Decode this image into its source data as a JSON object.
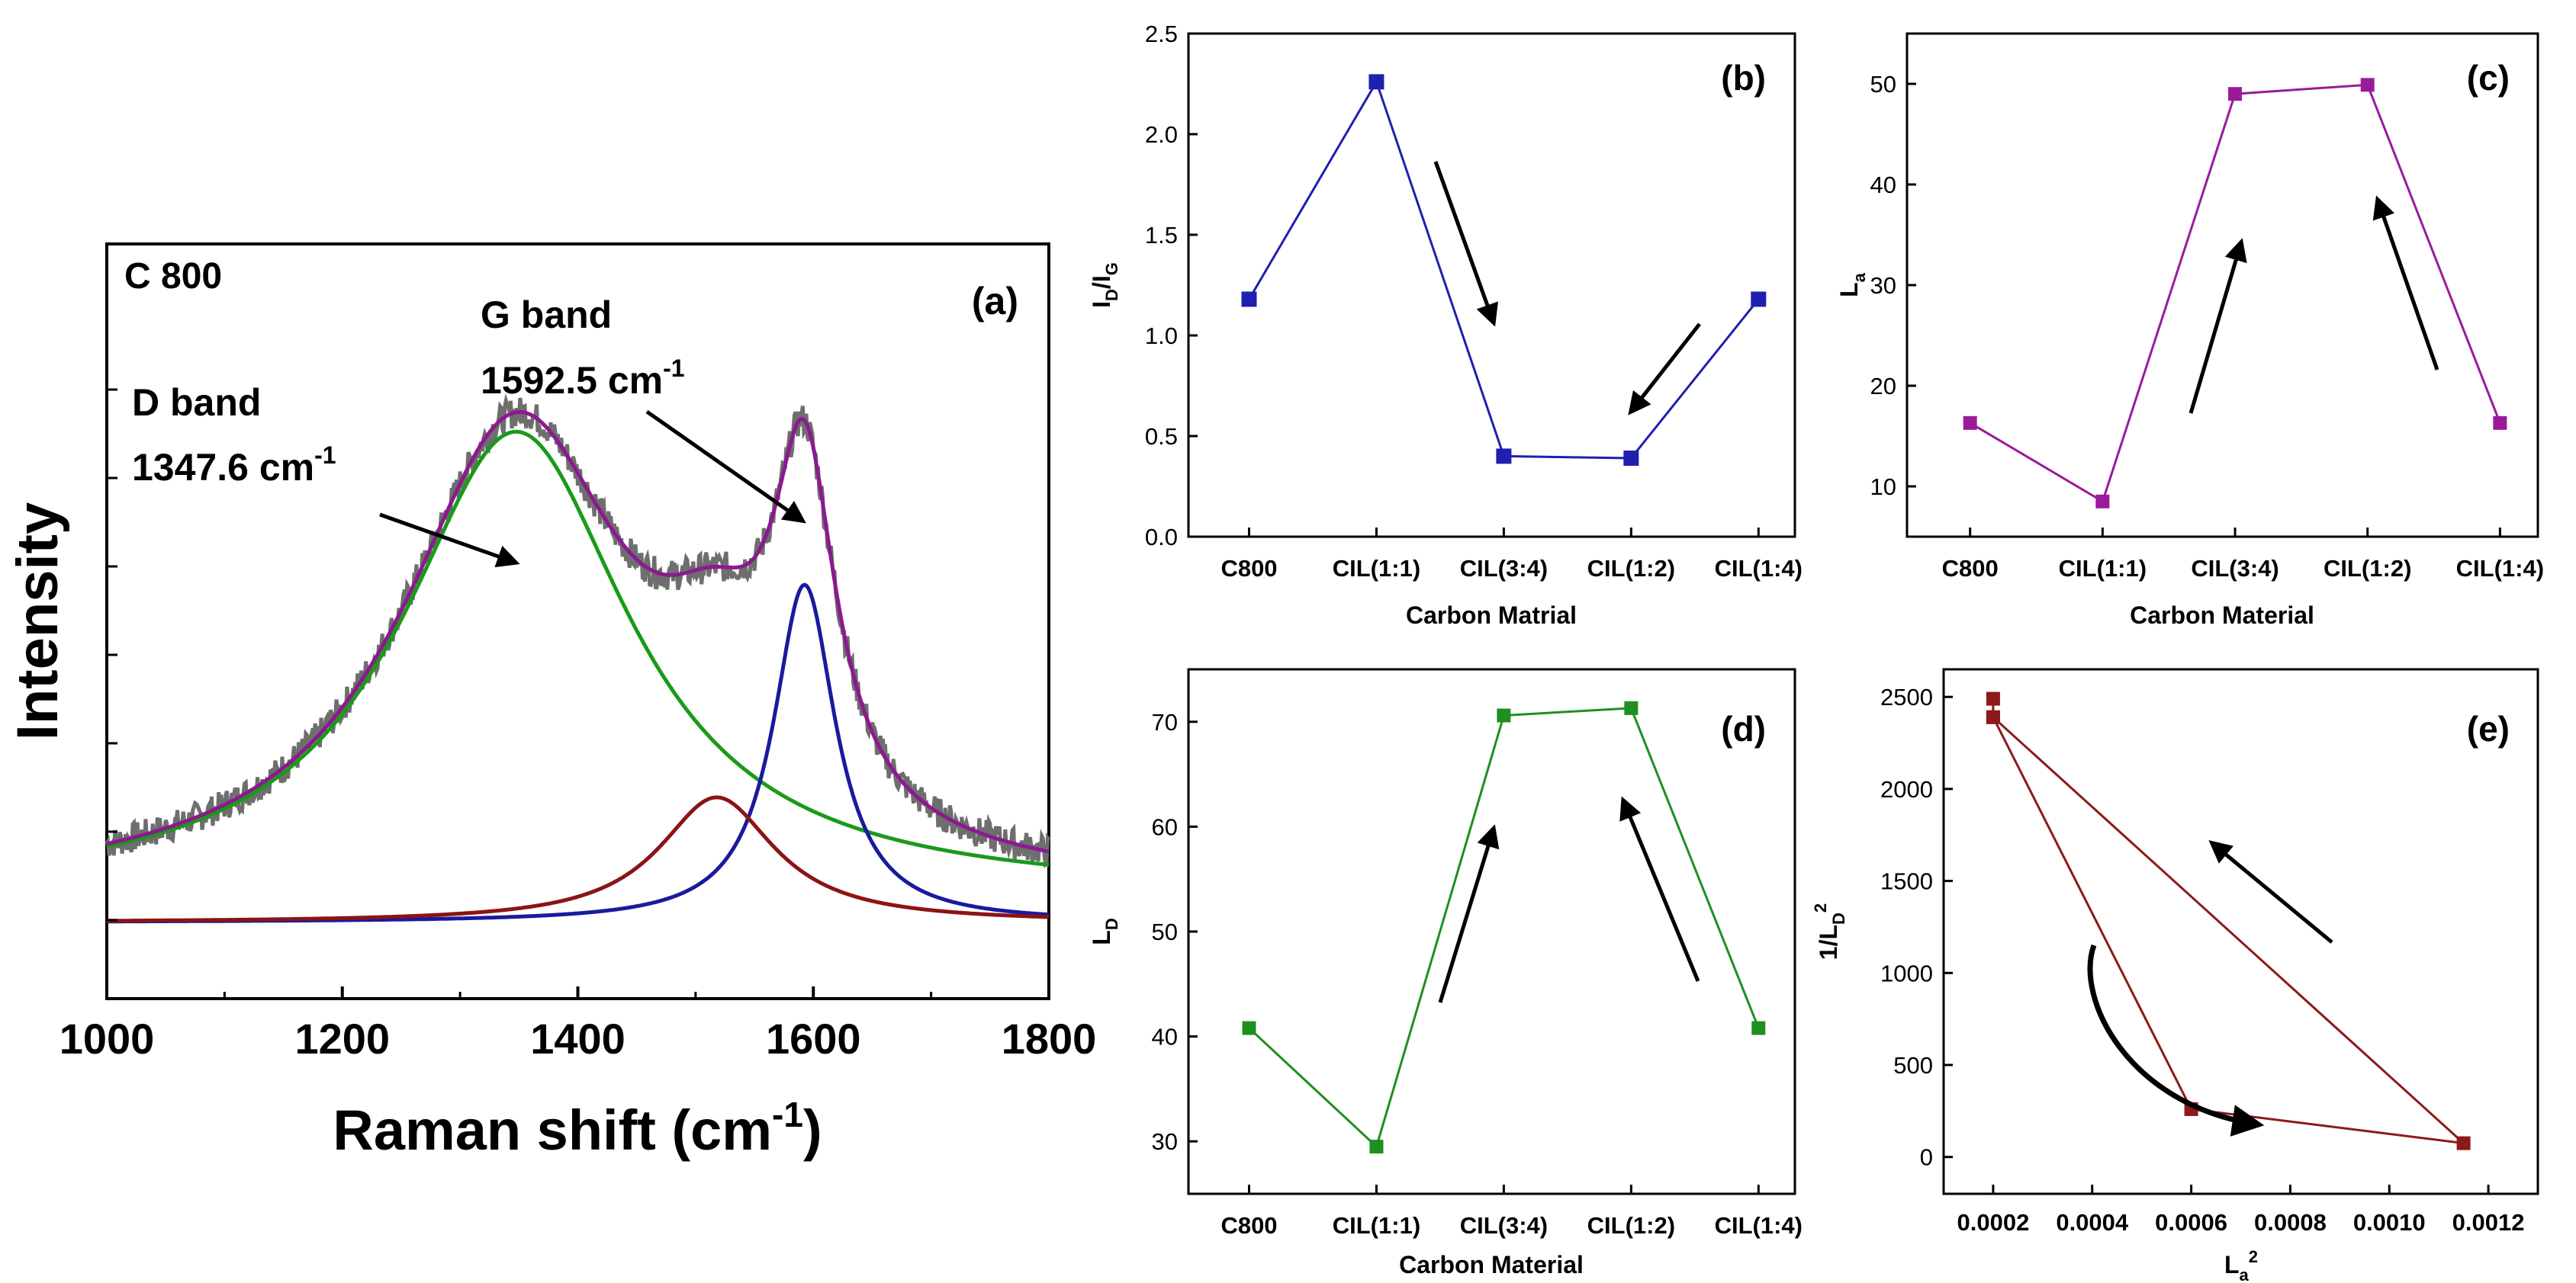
{
  "colors": {
    "raw": "#6e6e6e",
    "fit": "#8b1a8f",
    "d_band": "#1a9a1a",
    "g_band": "#1a1a9e",
    "d_prime": "#8b1414",
    "blue": "#1f1fb0",
    "purple": "#9b1a9b",
    "green": "#1f8f1f",
    "darkred": "#8b1a1a"
  },
  "chart_data": [
    {
      "id": "a",
      "type": "line",
      "panel_label": "(a)",
      "sample_label": "C 800",
      "xlabel": "Raman shift (cm-1)",
      "xlabel_main": "Raman shift (cm",
      "xlabel_sup": "-1",
      "xlabel_end": ")",
      "ylabel": "Intensity",
      "xlim": [
        1000,
        1800
      ],
      "xticks": [
        "1000",
        "1200",
        "1400",
        "1600",
        "1800"
      ],
      "ylim": [
        0,
        1.05
      ],
      "annotations": [
        {
          "title": "D band",
          "line": "1347.6 cm",
          "sup": "-1"
        },
        {
          "title": "G band",
          "line": "1592.5 cm",
          "sup": "-1"
        }
      ],
      "series": [
        {
          "name": "raw spectrum",
          "color_key": "raw"
        },
        {
          "name": "cumulative fit",
          "color_key": "fit"
        },
        {
          "name": "D band",
          "color_key": "d_band",
          "center": 1347.6,
          "width": 118,
          "height": 0.74,
          "offset": 0.045
        },
        {
          "name": "G band",
          "color_key": "g_band",
          "center": 1592.5,
          "width": 32,
          "height": 0.54,
          "offset": 0.0
        },
        {
          "name": "D'' band",
          "color_key": "d_prime",
          "center": 1518,
          "width": 60,
          "height": 0.2,
          "offset": 0.0
        }
      ]
    },
    {
      "id": "b",
      "type": "line",
      "panel_label": "(b)",
      "xlabel": "Carbon Matrial",
      "ylabel": "ID/IG",
      "ylabel_main": "I",
      "ylabel_sub1": "D",
      "ylabel_mid": "/I",
      "ylabel_sub2": "G",
      "categories": [
        "C800",
        "CIL(1:1)",
        "CIL(3:4)",
        "CIL(1:2)",
        "CIL(1:4)"
      ],
      "values": [
        1.18,
        2.26,
        0.4,
        0.39,
        1.18
      ],
      "ylim": [
        0,
        2.5
      ],
      "yticks": [
        "0.0",
        "0.5",
        "1.0",
        "1.5",
        "2.0",
        "2.5"
      ],
      "color_key": "blue"
    },
    {
      "id": "c",
      "type": "line",
      "panel_label": "(c)",
      "xlabel": "Carbon Material",
      "ylabel": "La",
      "ylabel_main": "L",
      "ylabel_sub": "a",
      "categories": [
        "C800",
        "CIL(1:1)",
        "CIL(3:4)",
        "CIL(1:2)",
        "CIL(1:4)"
      ],
      "values": [
        16.3,
        8.5,
        49.0,
        49.9,
        16.3
      ],
      "ylim": [
        5,
        55
      ],
      "yticks": [
        "10",
        "20",
        "30",
        "40",
        "50"
      ],
      "color_key": "purple"
    },
    {
      "id": "d",
      "type": "line",
      "panel_label": "(d)",
      "xlabel": "Carbon Material",
      "ylabel": "LD",
      "ylabel_main": "L",
      "ylabel_sub": "D",
      "categories": [
        "C800",
        "CIL(1:1)",
        "CIL(3:4)",
        "CIL(1:2)",
        "CIL(1:4)"
      ],
      "values": [
        40.8,
        29.5,
        70.6,
        71.3,
        40.8
      ],
      "ylim": [
        25,
        75
      ],
      "yticks": [
        "30",
        "40",
        "50",
        "60",
        "70"
      ],
      "color_key": "green"
    },
    {
      "id": "e",
      "type": "line",
      "panel_label": "(e)",
      "xlabel": "La2",
      "xlabel_main": "L",
      "xlabel_sub": "a",
      "xlabel_sup": "2",
      "ylabel": "1/LD2",
      "ylabel_main": "1/L",
      "ylabel_sub": "D",
      "ylabel_sup": "2",
      "x": [
        0.0002,
        0.0002,
        0.0006,
        0.00115,
        0.0002
      ],
      "y": [
        2490,
        2390,
        260,
        75,
        2390
      ],
      "xlim": [
        0.0001,
        0.0013
      ],
      "ylim": [
        -200,
        2650
      ],
      "xticks": [
        "0.0002",
        "0.0004",
        "0.0006",
        "0.0008",
        "0.0010",
        "0.0012"
      ],
      "yticks": [
        "0",
        "500",
        "1000",
        "1500",
        "2000",
        "2500"
      ],
      "color_key": "darkred"
    }
  ]
}
